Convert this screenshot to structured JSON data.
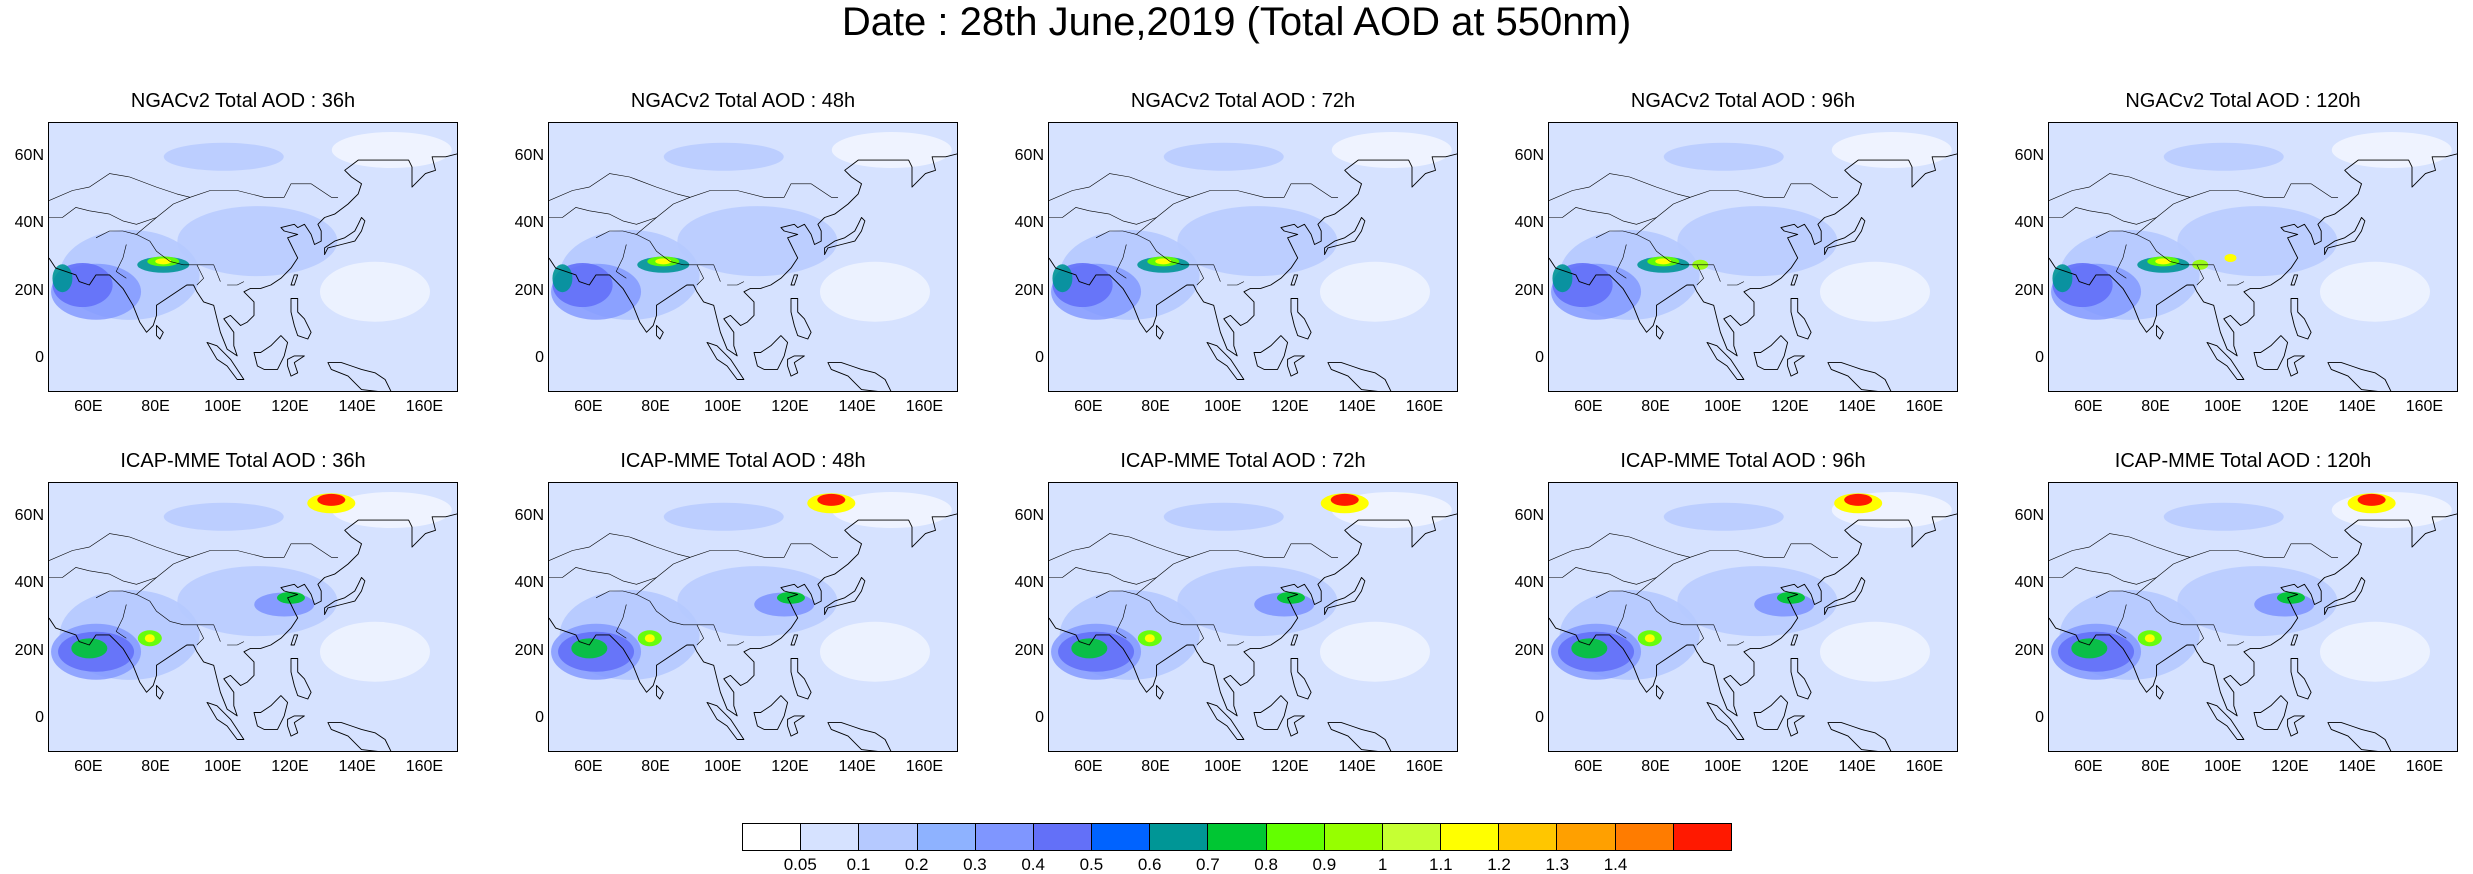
{
  "title": "Date : 28th June,2019 (Total AOD at 550nm)",
  "rows": [
    [
      "NGACv2 Total AOD : 36h",
      "NGACv2 Total AOD : 48h",
      "NGACv2 Total AOD : 72h",
      "NGACv2 Total AOD : 96h",
      "NGACv2 Total AOD : 120h"
    ],
    [
      "ICAP-MME Total AOD : 36h",
      "ICAP-MME Total AOD : 48h",
      "ICAP-MME Total AOD : 72h",
      "ICAP-MME Total AOD : 96h",
      "ICAP-MME Total AOD : 120h"
    ]
  ],
  "y_ticks": [
    "60N",
    "40N",
    "20N",
    "0"
  ],
  "y_tick_values": [
    60,
    40,
    20,
    0
  ],
  "x_ticks": [
    "60E",
    "80E",
    "100E",
    "120E",
    "140E",
    "160E"
  ],
  "x_tick_values": [
    60,
    80,
    100,
    120,
    140,
    160
  ],
  "lon_range": [
    48,
    170
  ],
  "lat_range": [
    -10,
    70
  ],
  "colorbar": {
    "labels": [
      "0.05",
      "0.1",
      "0.2",
      "0.3",
      "0.4",
      "0.5",
      "0.6",
      "0.7",
      "0.8",
      "0.9",
      "1",
      "1.1",
      "1.2",
      "1.3",
      "1.4"
    ],
    "colors": [
      "#ffffff",
      "#d6e2ff",
      "#b5c9ff",
      "#8eb2ff",
      "#7f96ff",
      "#6370f8",
      "#0063ff",
      "#009696",
      "#00c633",
      "#63ff00",
      "#96ff00",
      "#c6ff33",
      "#ffff00",
      "#ffc600",
      "#ffa000",
      "#ff7c00",
      "#ff1900"
    ]
  }
}
